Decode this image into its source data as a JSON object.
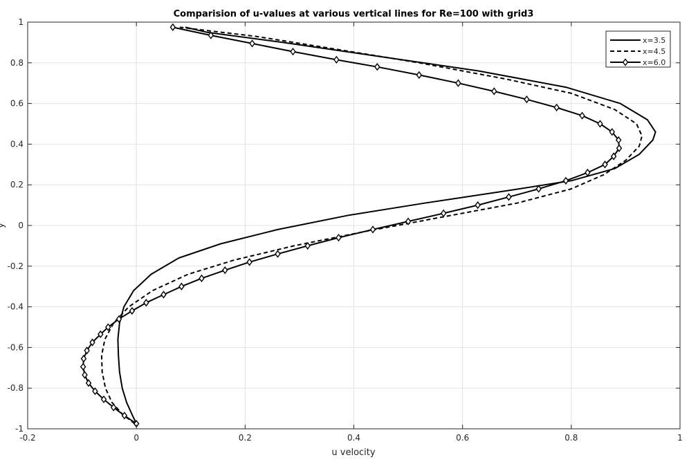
{
  "chart_data": {
    "type": "line",
    "title": "Comparision of u-values at various vertical lines for Re=100 with grid3",
    "xlabel": "u velocity",
    "ylabel": "y",
    "xlim": [
      -0.2,
      1.0
    ],
    "ylim": [
      -1.0,
      1.0
    ],
    "grid": true,
    "legend_position": "top-right",
    "x_ticks": [
      "-0.2",
      "0",
      "0.2",
      "0.4",
      "0.6",
      "0.8",
      "1"
    ],
    "y_ticks": [
      "-1",
      "-0.8",
      "-0.6",
      "-0.4",
      "-0.2",
      "0",
      "0.2",
      "0.4",
      "0.6",
      "0.8",
      "1"
    ],
    "series": [
      {
        "name": "x=3.5",
        "style": "solid",
        "marker": "none",
        "color": "#000000",
        "points": [
          [
            0.0,
            -0.975
          ],
          [
            -0.008,
            -0.93
          ],
          [
            -0.018,
            -0.87
          ],
          [
            -0.026,
            -0.8
          ],
          [
            -0.031,
            -0.72
          ],
          [
            -0.033,
            -0.64
          ],
          [
            -0.034,
            -0.56
          ],
          [
            -0.031,
            -0.48
          ],
          [
            -0.023,
            -0.4
          ],
          [
            -0.005,
            -0.32
          ],
          [
            0.027,
            -0.24
          ],
          [
            0.078,
            -0.16
          ],
          [
            0.155,
            -0.09
          ],
          [
            0.26,
            -0.02
          ],
          [
            0.39,
            0.05
          ],
          [
            0.53,
            0.11
          ],
          [
            0.68,
            0.17
          ],
          [
            0.8,
            0.22
          ],
          [
            0.88,
            0.28
          ],
          [
            0.925,
            0.35
          ],
          [
            0.95,
            0.42
          ],
          [
            0.955,
            0.46
          ],
          [
            0.94,
            0.52
          ],
          [
            0.89,
            0.6
          ],
          [
            0.79,
            0.68
          ],
          [
            0.63,
            0.76
          ],
          [
            0.45,
            0.83
          ],
          [
            0.27,
            0.9
          ],
          [
            0.13,
            0.95
          ],
          [
            0.09,
            0.975
          ]
        ]
      },
      {
        "name": "x=4.5",
        "style": "dashed",
        "marker": "none",
        "color": "#000000",
        "points": [
          [
            -0.003,
            -0.975
          ],
          [
            -0.025,
            -0.93
          ],
          [
            -0.045,
            -0.87
          ],
          [
            -0.057,
            -0.8
          ],
          [
            -0.063,
            -0.72
          ],
          [
            -0.064,
            -0.64
          ],
          [
            -0.058,
            -0.56
          ],
          [
            -0.042,
            -0.48
          ],
          [
            -0.014,
            -0.4
          ],
          [
            0.03,
            -0.32
          ],
          [
            0.095,
            -0.24
          ],
          [
            0.18,
            -0.17
          ],
          [
            0.29,
            -0.1
          ],
          [
            0.42,
            -0.03
          ],
          [
            0.56,
            0.04
          ],
          [
            0.7,
            0.11
          ],
          [
            0.8,
            0.18
          ],
          [
            0.86,
            0.25
          ],
          [
            0.9,
            0.32
          ],
          [
            0.925,
            0.39
          ],
          [
            0.93,
            0.44
          ],
          [
            0.92,
            0.5
          ],
          [
            0.88,
            0.57
          ],
          [
            0.8,
            0.65
          ],
          [
            0.68,
            0.72
          ],
          [
            0.52,
            0.8
          ],
          [
            0.36,
            0.87
          ],
          [
            0.22,
            0.93
          ],
          [
            0.11,
            0.965
          ],
          [
            0.08,
            0.975
          ]
        ]
      },
      {
        "name": "x=6.0",
        "style": "solid",
        "marker": "diamond",
        "color": "#000000",
        "points": [
          [
            0.0,
            -0.975
          ],
          [
            -0.022,
            -0.935
          ],
          [
            -0.042,
            -0.895
          ],
          [
            -0.06,
            -0.855
          ],
          [
            -0.076,
            -0.815
          ],
          [
            -0.088,
            -0.775
          ],
          [
            -0.095,
            -0.735
          ],
          [
            -0.098,
            -0.695
          ],
          [
            -0.097,
            -0.655
          ],
          [
            -0.091,
            -0.615
          ],
          [
            -0.081,
            -0.575
          ],
          [
            -0.066,
            -0.535
          ],
          [
            -0.052,
            -0.5
          ],
          [
            -0.032,
            -0.46
          ],
          [
            -0.008,
            -0.42
          ],
          [
            0.018,
            -0.38
          ],
          [
            0.05,
            -0.34
          ],
          [
            0.083,
            -0.3
          ],
          [
            0.12,
            -0.26
          ],
          [
            0.163,
            -0.22
          ],
          [
            0.208,
            -0.18
          ],
          [
            0.26,
            -0.14
          ],
          [
            0.315,
            -0.1
          ],
          [
            0.372,
            -0.06
          ],
          [
            0.435,
            -0.02
          ],
          [
            0.5,
            0.02
          ],
          [
            0.565,
            0.06
          ],
          [
            0.628,
            0.1
          ],
          [
            0.685,
            0.14
          ],
          [
            0.74,
            0.18
          ],
          [
            0.79,
            0.22
          ],
          [
            0.83,
            0.26
          ],
          [
            0.862,
            0.3
          ],
          [
            0.878,
            0.34
          ],
          [
            0.888,
            0.38
          ],
          [
            0.887,
            0.42
          ],
          [
            0.875,
            0.46
          ],
          [
            0.853,
            0.5
          ],
          [
            0.82,
            0.54
          ],
          [
            0.773,
            0.58
          ],
          [
            0.718,
            0.62
          ],
          [
            0.658,
            0.66
          ],
          [
            0.592,
            0.7
          ],
          [
            0.52,
            0.74
          ],
          [
            0.443,
            0.78
          ],
          [
            0.368,
            0.815
          ],
          [
            0.288,
            0.855
          ],
          [
            0.213,
            0.895
          ],
          [
            0.137,
            0.935
          ],
          [
            0.067,
            0.975
          ]
        ]
      }
    ]
  }
}
